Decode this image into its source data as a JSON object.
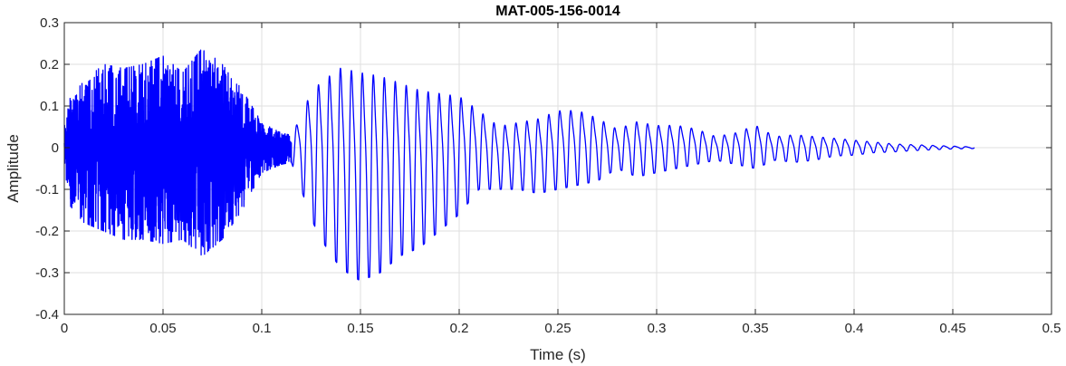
{
  "chart_data": {
    "type": "line",
    "title": "MAT-005-156-0014",
    "xlabel": "Time (s)",
    "ylabel": "Amplitude",
    "xlim": [
      0,
      0.5
    ],
    "ylim": [
      -0.4,
      0.3
    ],
    "xticks": [
      0,
      0.05,
      0.1,
      0.15,
      0.2,
      0.25,
      0.3,
      0.35,
      0.4,
      0.45,
      0.5
    ],
    "xtick_labels": [
      "0",
      "0.05",
      "0.1",
      "0.15",
      "0.2",
      "0.25",
      "0.3",
      "0.35",
      "0.4",
      "0.45",
      "0.5"
    ],
    "yticks": [
      -0.4,
      -0.3,
      -0.2,
      -0.1,
      0,
      0.1,
      0.2,
      0.3
    ],
    "ytick_labels": [
      "-0.4",
      "-0.3",
      "-0.2",
      "-0.1",
      "0",
      "0.1",
      "0.2",
      "0.3"
    ],
    "grid": true,
    "series": [
      {
        "color": "#0000ff",
        "signal_end": 0.461,
        "envelope": {
          "t": [
            0,
            0.003,
            0.01,
            0.02,
            0.03,
            0.04,
            0.05,
            0.06,
            0.07,
            0.08,
            0.09,
            0.1,
            0.11,
            0.115,
            0.12,
            0.125,
            0.13,
            0.14,
            0.15,
            0.16,
            0.17,
            0.18,
            0.19,
            0.2,
            0.21,
            0.22,
            0.23,
            0.24,
            0.25,
            0.26,
            0.27,
            0.28,
            0.29,
            0.3,
            0.31,
            0.32,
            0.33,
            0.34,
            0.35,
            0.36,
            0.37,
            0.38,
            0.39,
            0.4,
            0.41,
            0.42,
            0.43,
            0.44,
            0.45,
            0.461
          ],
          "upper": [
            0.05,
            0.12,
            0.16,
            0.2,
            0.19,
            0.2,
            0.22,
            0.18,
            0.24,
            0.2,
            0.14,
            0.06,
            0.035,
            0.03,
            0.09,
            0.15,
            0.18,
            0.22,
            0.21,
            0.2,
            0.18,
            0.16,
            0.15,
            0.14,
            0.1,
            0.06,
            0.07,
            0.08,
            0.1,
            0.1,
            0.08,
            0.05,
            0.07,
            0.06,
            0.06,
            0.05,
            0.03,
            0.04,
            0.06,
            0.03,
            0.035,
            0.03,
            0.025,
            0.02,
            0.015,
            0.01,
            0.008,
            0.006,
            0.004,
            0.002
          ],
          "lower": [
            -0.05,
            -0.14,
            -0.18,
            -0.2,
            -0.22,
            -0.22,
            -0.23,
            -0.22,
            -0.26,
            -0.22,
            -0.15,
            -0.06,
            -0.04,
            -0.035,
            -0.1,
            -0.17,
            -0.22,
            -0.29,
            -0.32,
            -0.3,
            -0.26,
            -0.24,
            -0.2,
            -0.16,
            -0.1,
            -0.1,
            -0.1,
            -0.11,
            -0.1,
            -0.09,
            -0.08,
            -0.05,
            -0.07,
            -0.06,
            -0.05,
            -0.04,
            -0.03,
            -0.04,
            -0.05,
            -0.03,
            -0.035,
            -0.03,
            -0.02,
            -0.018,
            -0.012,
            -0.01,
            -0.007,
            -0.005,
            -0.003,
            -0.002
          ]
        },
        "segments": [
          {
            "from": 0,
            "to": 0.115,
            "kind": "noise",
            "freq_hz": 1800
          },
          {
            "from": 0.115,
            "to": 0.461,
            "kind": "tonal",
            "freq_hz": 180
          }
        ]
      }
    ]
  }
}
